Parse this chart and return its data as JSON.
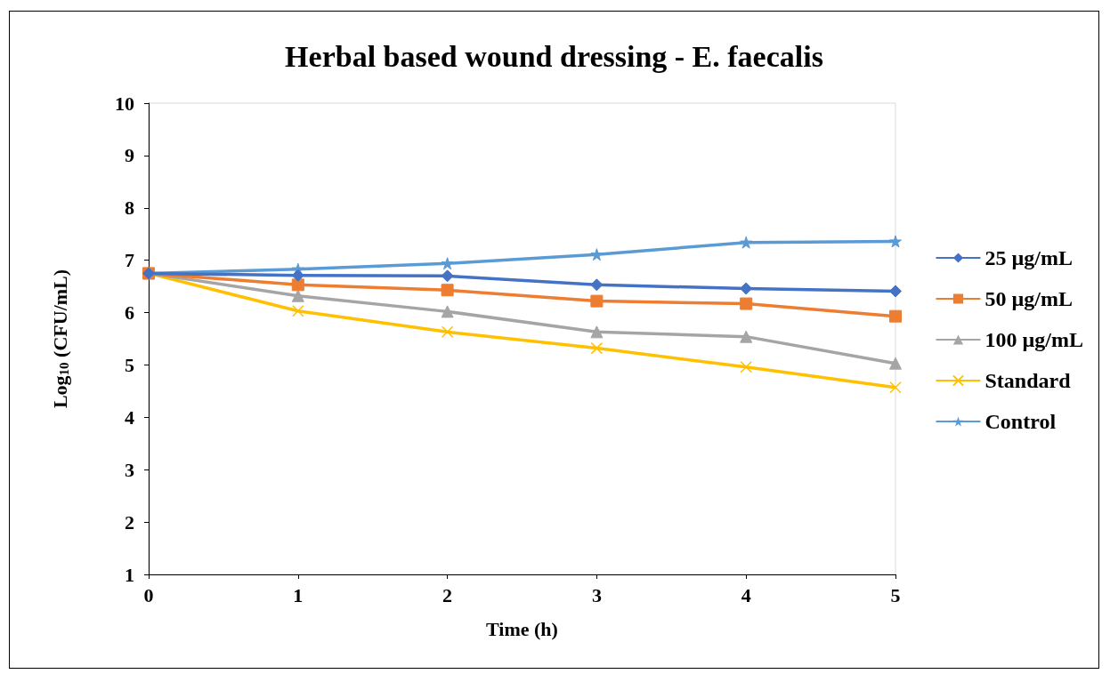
{
  "chart_data": {
    "type": "line",
    "title": "Herbal based wound dressing - E. faecalis",
    "xlabel": "Time (h)",
    "ylabel": "Log$_{10}$ (CFU/mL)",
    "x": [
      0,
      1,
      2,
      3,
      4,
      5
    ],
    "xlim": [
      0,
      5
    ],
    "xticks": [
      0,
      1,
      2,
      3,
      4,
      5
    ],
    "ylim": [
      1,
      10
    ],
    "yticks": [
      1,
      2,
      3,
      4,
      5,
      6,
      7,
      8,
      9,
      10
    ],
    "grid": false,
    "legend": "right",
    "series": [
      {
        "name": "25 µg/mL",
        "color": "#4472c4",
        "marker": "diamond",
        "values": [
          6.75,
          6.71,
          6.7,
          6.53,
          6.46,
          6.41
        ]
      },
      {
        "name": "50 µg/mL",
        "color": "#ed7d31",
        "marker": "square",
        "values": [
          6.75,
          6.53,
          6.43,
          6.22,
          6.17,
          5.93
        ]
      },
      {
        "name": "100 µg/mL",
        "color": "#a5a5a5",
        "marker": "triangle",
        "values": [
          6.75,
          6.32,
          6.02,
          5.63,
          5.54,
          5.03
        ]
      },
      {
        "name": "Standard",
        "color": "#ffc000",
        "marker": "cross",
        "values": [
          6.75,
          6.03,
          5.63,
          5.32,
          4.96,
          4.57
        ]
      },
      {
        "name": "Control",
        "color": "#5b9bd5",
        "marker": "star",
        "values": [
          6.75,
          6.83,
          6.94,
          7.11,
          7.34,
          7.36
        ]
      }
    ]
  }
}
